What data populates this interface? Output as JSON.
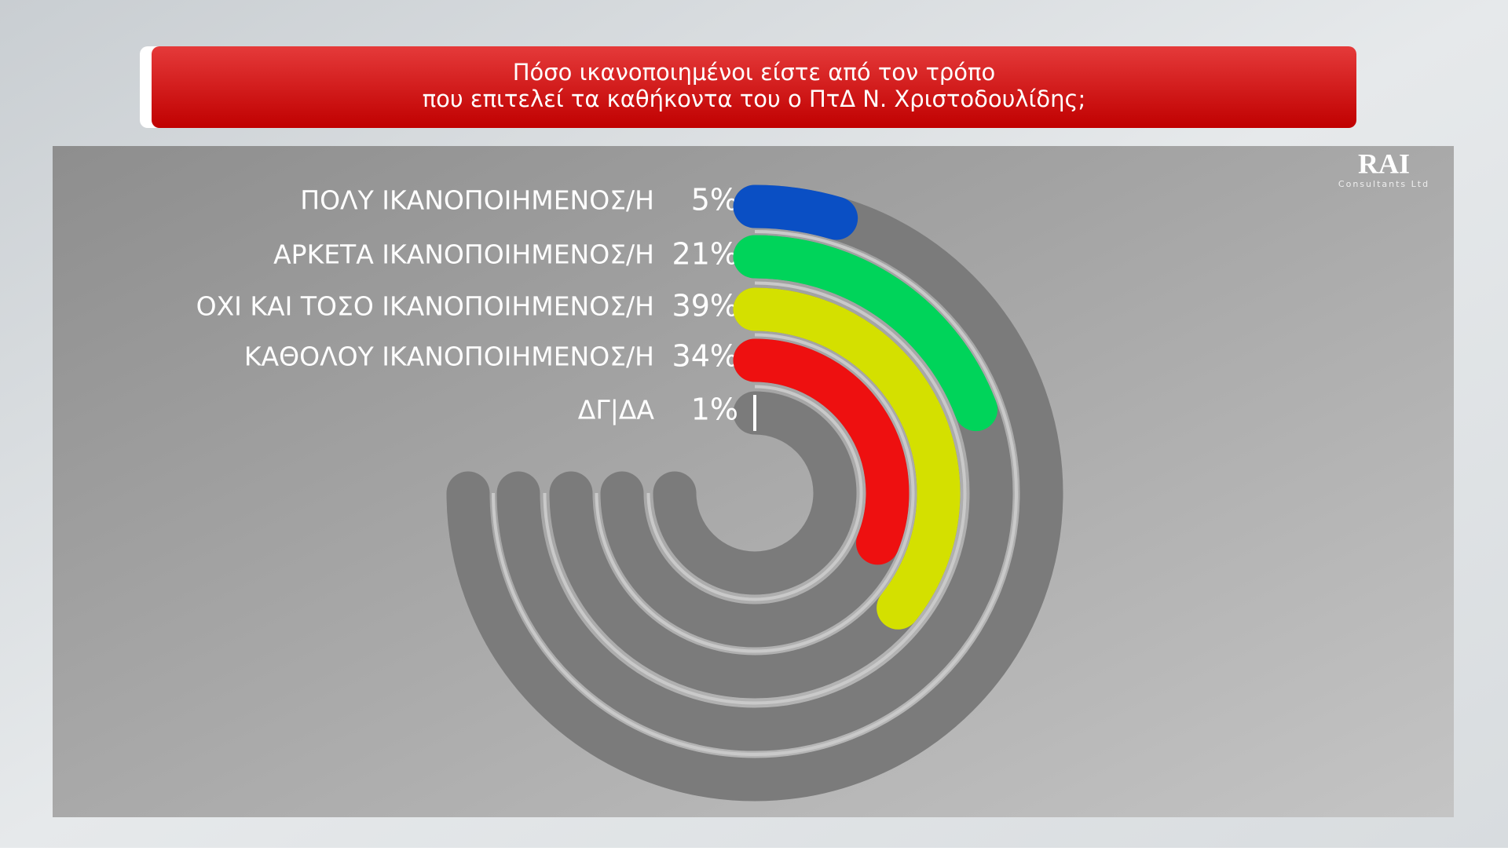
{
  "chart_data": {
    "type": "radial-bar",
    "title": [
      "Πόσο ικανοποιημένοι είστε από τον τρόπο",
      "που επιτελεί τα καθήκοντα του ο ΠτΔ Ν. Χριστοδουλίδης;"
    ],
    "categories": [
      "ΠΟΛΥ ΙΚΑΝΟΠΟΙΗΜΕΝΟΣ/Η",
      "ΑΡΚΕΤΑ ΙΚΑΝΟΠΟΙΗΜΕΝΟΣ/Η",
      "ΟΧΙ ΚΑΙ ΤΟΣΟ ΙΚΑΝΟΠΟΙΗΜΕΝΟΣ/Η",
      "ΚΑΘΟΛΟΥ ΙΚΑΝΟΠΟΙΗΜΕΝΟΣ/Η",
      "ΔΓ|ΔΑ"
    ],
    "values": [
      5,
      21,
      39,
      34,
      1
    ],
    "value_labels": [
      "5%",
      "21%",
      "39%",
      "34%",
      "1%"
    ],
    "colors": [
      "#0a4fc4",
      "#00d45a",
      "#d4e000",
      "#ee1010",
      "#ffffff"
    ],
    "logo": [
      "RAI",
      "Consultants Ltd"
    ]
  }
}
